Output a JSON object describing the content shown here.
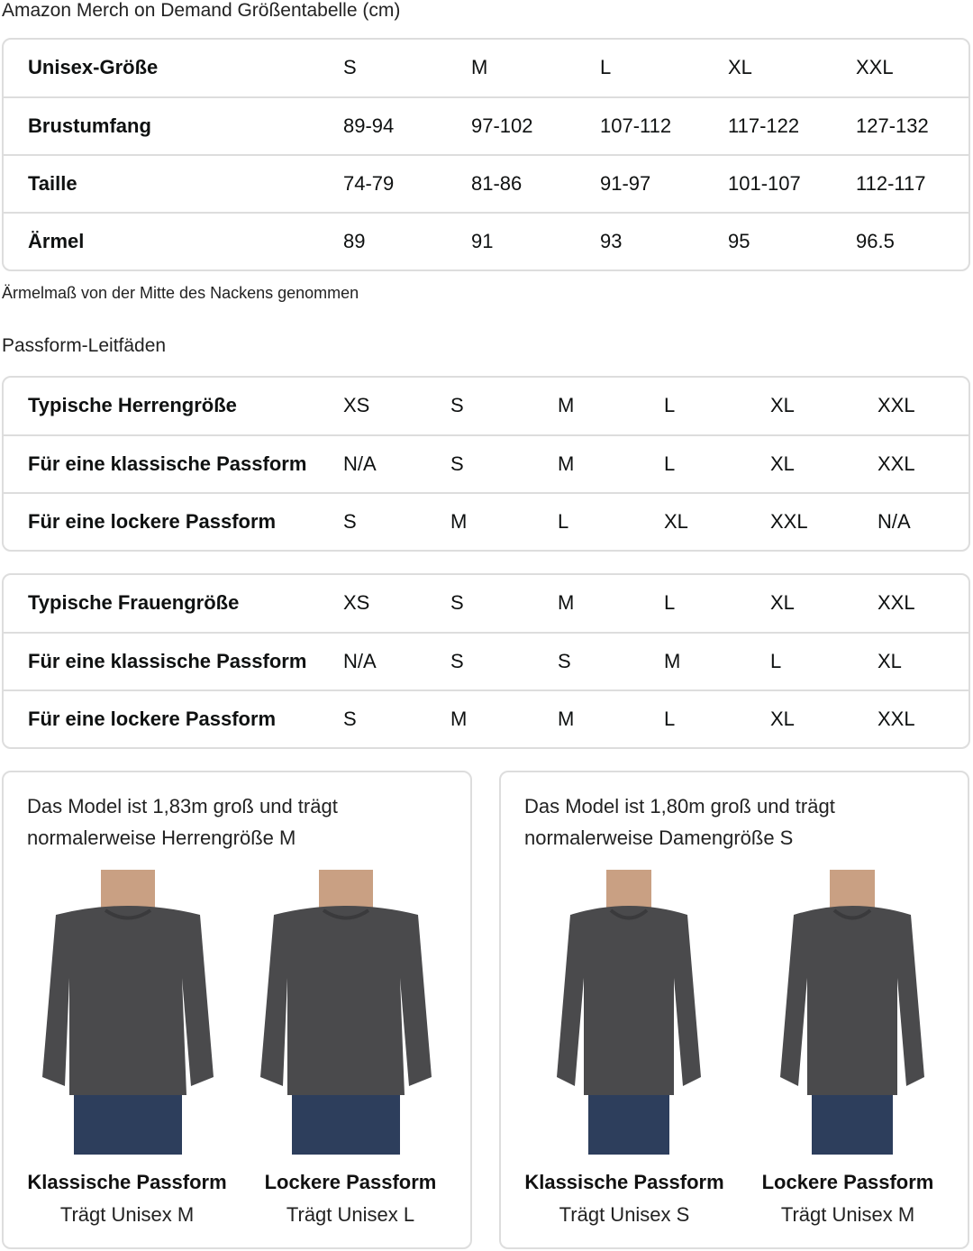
{
  "title": "Amazon Merch on Demand Größentabelle (cm)",
  "unisex_table": {
    "rows": [
      [
        "Unisex-Größe",
        "S",
        "M",
        "L",
        "XL",
        "XXL"
      ],
      [
        "Brustumfang",
        "89-94",
        "97-102",
        "107-112",
        "117-122",
        "127-132"
      ],
      [
        "Taille",
        "74-79",
        "81-86",
        "91-97",
        "101-107",
        "112-117"
      ],
      [
        "Ärmel",
        "89",
        "91",
        "93",
        "95",
        "96.5"
      ]
    ]
  },
  "sleeve_note": "Ärmelmaß von der Mitte des Nackens genommen",
  "fit_guide_title": "Passform-Leitfäden",
  "men_table": {
    "rows": [
      [
        "Typische Herrengröße",
        "XS",
        "S",
        "M",
        "L",
        "XL",
        "XXL"
      ],
      [
        "Für eine klassische Passform",
        "N/A",
        "S",
        "M",
        "L",
        "XL",
        "XXL"
      ],
      [
        "Für eine lockere Passform",
        "S",
        "M",
        "L",
        "XL",
        "XXL",
        "N/A"
      ]
    ]
  },
  "women_table": {
    "rows": [
      [
        "Typische Frauengröße",
        "XS",
        "S",
        "M",
        "L",
        "XL",
        "XXL"
      ],
      [
        "Für eine klassische Passform",
        "N/A",
        "S",
        "S",
        "M",
        "L",
        "XL"
      ],
      [
        "Für eine lockere Passform",
        "S",
        "M",
        "M",
        "L",
        "XL",
        "XXL"
      ]
    ]
  },
  "cards": [
    {
      "caption_1": "Das Model ist 1,83m groß und trägt",
      "caption_2": "normalerweise Herrengröße M",
      "photos": [
        {
          "fit": "Klassische Passform",
          "wears": "Trägt Unisex M"
        },
        {
          "fit": "Lockere Passform",
          "wears": "Trägt Unisex L"
        }
      ]
    },
    {
      "caption_1": "Das Model ist 1,80m groß und trägt",
      "caption_2": "normalerweise Damengröße S",
      "photos": [
        {
          "fit": "Klassische Passform",
          "wears": "Trägt Unisex S"
        },
        {
          "fit": "Lockere Passform",
          "wears": "Trägt Unisex M"
        }
      ]
    }
  ],
  "colors": {
    "border": "#dddddd",
    "sweatshirt": "#4a4a4c",
    "skin": "#c9a083",
    "jeans": "#2d3e5c"
  }
}
